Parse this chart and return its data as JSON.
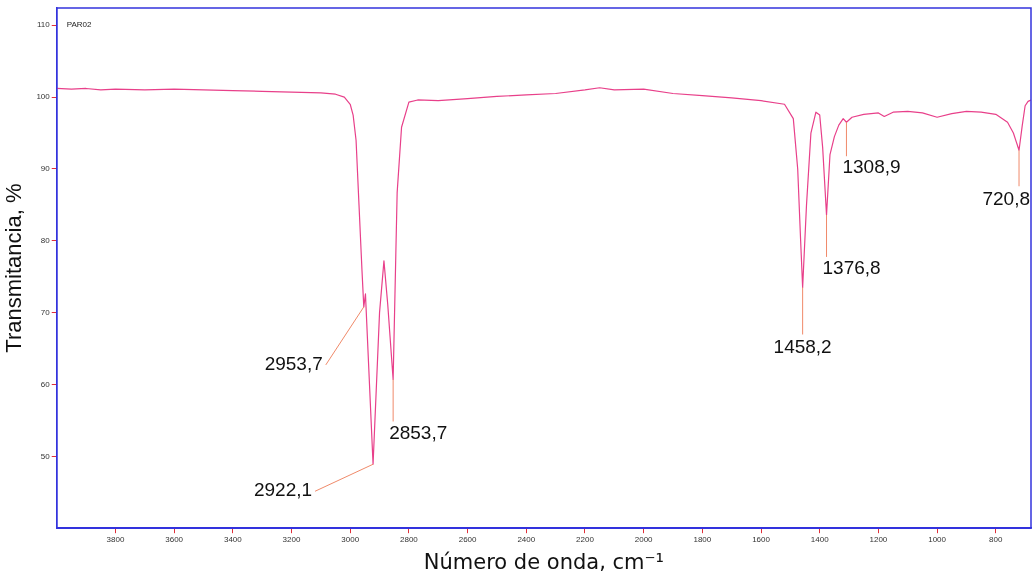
{
  "chart_data": {
    "type": "line",
    "xlabel": "Número de onda, cm⁻¹",
    "ylabel": "Transmitancia, %",
    "xlim": [
      4000,
      680
    ],
    "ylim": [
      40,
      112.4
    ],
    "xticks": [
      3800,
      3600,
      3400,
      3200,
      3000,
      2800,
      2600,
      2400,
      2200,
      2000,
      1800,
      1600,
      1400,
      1200,
      1000,
      800
    ],
    "yticks": [
      50,
      60,
      70,
      80,
      90,
      100,
      110
    ],
    "grid": false,
    "legend": false,
    "marker": "none",
    "line_style": "solid",
    "x": [
      4000,
      3950,
      3900,
      3850,
      3800,
      3700,
      3600,
      3500,
      3400,
      3300,
      3200,
      3100,
      3050,
      3020,
      3000,
      2990,
      2980,
      2970,
      2960,
      2953.7,
      2948,
      2922.1,
      2900,
      2885,
      2872,
      2853.7,
      2840,
      2825,
      2800,
      2770,
      2700,
      2600,
      2500,
      2400,
      2300,
      2200,
      2150,
      2100,
      2000,
      1900,
      1800,
      1700,
      1600,
      1520,
      1490,
      1475,
      1465,
      1458.2,
      1445,
      1430,
      1413,
      1400,
      1390,
      1376.8,
      1365,
      1350,
      1335,
      1320,
      1308.9,
      1290,
      1250,
      1200,
      1180,
      1150,
      1100,
      1050,
      1000,
      950,
      900,
      850,
      800,
      760,
      740,
      720.8,
      710,
      700,
      690,
      680
    ],
    "series": [
      {
        "color": "#e8408a",
        "values": [
          101.2,
          101.1,
          101.2,
          101.0,
          101.1,
          101.0,
          101.1,
          101.0,
          100.9,
          100.8,
          100.7,
          100.6,
          100.4,
          100.0,
          99.0,
          97.5,
          94,
          85,
          76,
          70.8,
          72.6,
          48.9,
          70,
          77.2,
          71.1,
          60.7,
          86.7,
          95.8,
          99.3,
          99.6,
          99.5,
          99.8,
          100.1,
          100.3,
          100.5,
          101.0,
          101.3,
          101.0,
          101.1,
          100.5,
          100.2,
          99.9,
          99.5,
          99.0,
          97,
          90,
          80,
          73.5,
          85,
          95,
          97.9,
          97.5,
          93,
          83.6,
          92,
          94.5,
          96.1,
          97.0,
          96.5,
          97.2,
          97.6,
          97.8,
          97.3,
          97.9,
          98.0,
          97.8,
          97.2,
          97.7,
          98.0,
          97.9,
          97.6,
          96.5,
          95,
          92.6,
          96,
          98.8,
          99.4,
          99.6
        ]
      }
    ],
    "annotations": [
      "PAR02",
      {
        "text": "2953,7",
        "x": 2953.7,
        "y": 70.8
      },
      {
        "text": "2922,1",
        "x": 2922.1,
        "y": 48.9
      },
      {
        "text": "2853,7",
        "x": 2853.7,
        "y": 60.7
      },
      {
        "text": "1458,2",
        "x": 1458.2,
        "y": 73.5
      },
      {
        "text": "1376,8",
        "x": 1376.8,
        "y": 83.6
      },
      {
        "text": "1308,9",
        "x": 1308.9,
        "y": 96.5
      },
      {
        "text": "720,8",
        "x": 720.8,
        "y": 92.6
      }
    ]
  }
}
